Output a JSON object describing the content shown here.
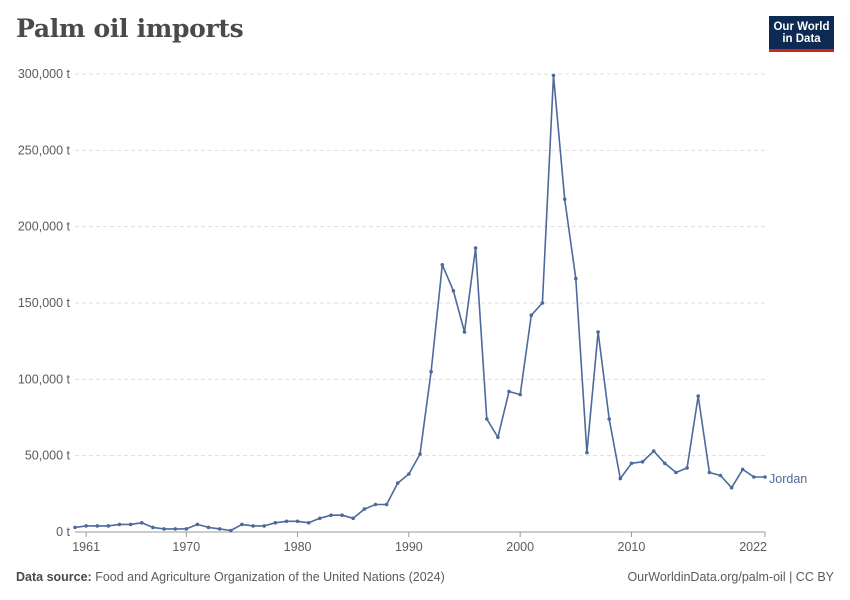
{
  "header": {
    "title": "Palm oil imports"
  },
  "logo": {
    "line1": "Our World",
    "line2": "in Data"
  },
  "footer": {
    "source_label": "Data source:",
    "source_text": "Food and Agriculture Organization of the United Nations (2024)",
    "right_text": "OurWorldinData.org/palm-oil | CC BY"
  },
  "colors": {
    "series": "#4c6a9c",
    "grid": "#dddddd",
    "axis": "#666666",
    "text": "#5b5b5b"
  },
  "chart_data": {
    "type": "line",
    "title": "Palm oil imports",
    "xlabel": "",
    "ylabel": "",
    "xlim": [
      1960,
      2022
    ],
    "ylim": [
      0,
      300000
    ],
    "y_ticks": [
      {
        "value": 0,
        "label": "0 t"
      },
      {
        "value": 50000,
        "label": "50,000 t"
      },
      {
        "value": 100000,
        "label": "100,000 t"
      },
      {
        "value": 150000,
        "label": "150,000 t"
      },
      {
        "value": 200000,
        "label": "200,000 t"
      },
      {
        "value": 250000,
        "label": "250,000 t"
      },
      {
        "value": 300000,
        "label": "300,000 t"
      }
    ],
    "x_ticks": [
      {
        "value": 1961,
        "label": "1961"
      },
      {
        "value": 1970,
        "label": "1970"
      },
      {
        "value": 1980,
        "label": "1980"
      },
      {
        "value": 1990,
        "label": "1990"
      },
      {
        "value": 2000,
        "label": "2000"
      },
      {
        "value": 2010,
        "label": "2010"
      },
      {
        "value": 2022,
        "label": "2022"
      }
    ],
    "grid": true,
    "series": [
      {
        "name": "Jordan",
        "x": [
          1960,
          1961,
          1962,
          1963,
          1964,
          1965,
          1966,
          1967,
          1968,
          1969,
          1970,
          1971,
          1972,
          1973,
          1974,
          1975,
          1976,
          1977,
          1978,
          1979,
          1980,
          1981,
          1982,
          1983,
          1984,
          1985,
          1986,
          1987,
          1988,
          1989,
          1990,
          1991,
          1992,
          1993,
          1994,
          1995,
          1996,
          1997,
          1998,
          1999,
          2000,
          2001,
          2002,
          2003,
          2004,
          2005,
          2006,
          2007,
          2008,
          2009,
          2010,
          2011,
          2012,
          2013,
          2014,
          2015,
          2016,
          2017,
          2018,
          2019,
          2020,
          2021,
          2022
        ],
        "values": [
          3000,
          4000,
          4000,
          4000,
          5000,
          5000,
          6000,
          3000,
          2000,
          2000,
          2000,
          5000,
          3000,
          2000,
          1000,
          5000,
          4000,
          4000,
          6000,
          7000,
          7000,
          6000,
          9000,
          11000,
          11000,
          9000,
          15000,
          18000,
          18000,
          32000,
          38000,
          51000,
          105000,
          175000,
          158000,
          131000,
          186000,
          74000,
          62000,
          92000,
          90000,
          142000,
          150000,
          299000,
          218000,
          166000,
          52000,
          131000,
          74000,
          35000,
          45000,
          46000,
          53000,
          45000,
          39000,
          42000,
          89000,
          39000,
          37000,
          29000,
          41000,
          36000,
          36000
        ]
      }
    ]
  }
}
